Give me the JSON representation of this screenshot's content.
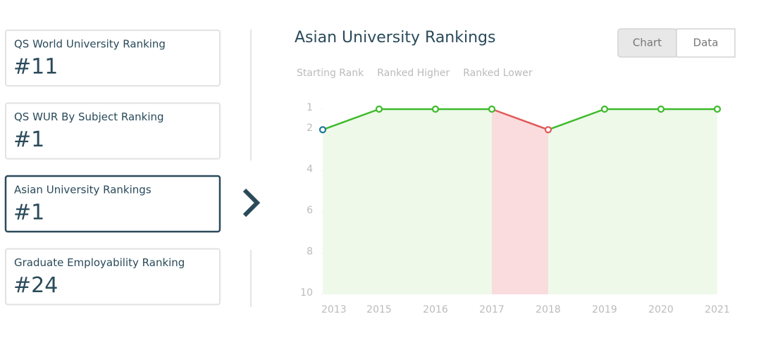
{
  "cards": [
    {
      "label": "QS World University Ranking",
      "value": "#11"
    },
    {
      "label": "QS WUR By Subject Ranking",
      "value": "#1"
    },
    {
      "label": "Asian University Rankings",
      "value": "#1",
      "active": true
    },
    {
      "label": "Graduate Employability Ranking",
      "value": "#24"
    }
  ],
  "tabs": [
    {
      "label": "Chart",
      "active": true
    },
    {
      "label": "Data"
    }
  ],
  "chart_data": {
    "type": "line",
    "title": "Asian University Rankings",
    "legend": [
      {
        "name": "Starting Rank",
        "color": "#1f7a99"
      },
      {
        "name": "Ranked Higher",
        "color": "#3dbb2a"
      },
      {
        "name": "Ranked Lower",
        "color": "#e05a5a"
      }
    ],
    "categories": [
      "2013",
      "2015",
      "2016",
      "2017",
      "2018",
      "2019",
      "2020",
      "2021"
    ],
    "series": [
      {
        "values": [
          2,
          1,
          1,
          1,
          2,
          1,
          1,
          1
        ]
      }
    ],
    "ylim": [
      1,
      10
    ],
    "y_reversed": true,
    "yticks": [
      1,
      2,
      4,
      6,
      8,
      10
    ]
  }
}
